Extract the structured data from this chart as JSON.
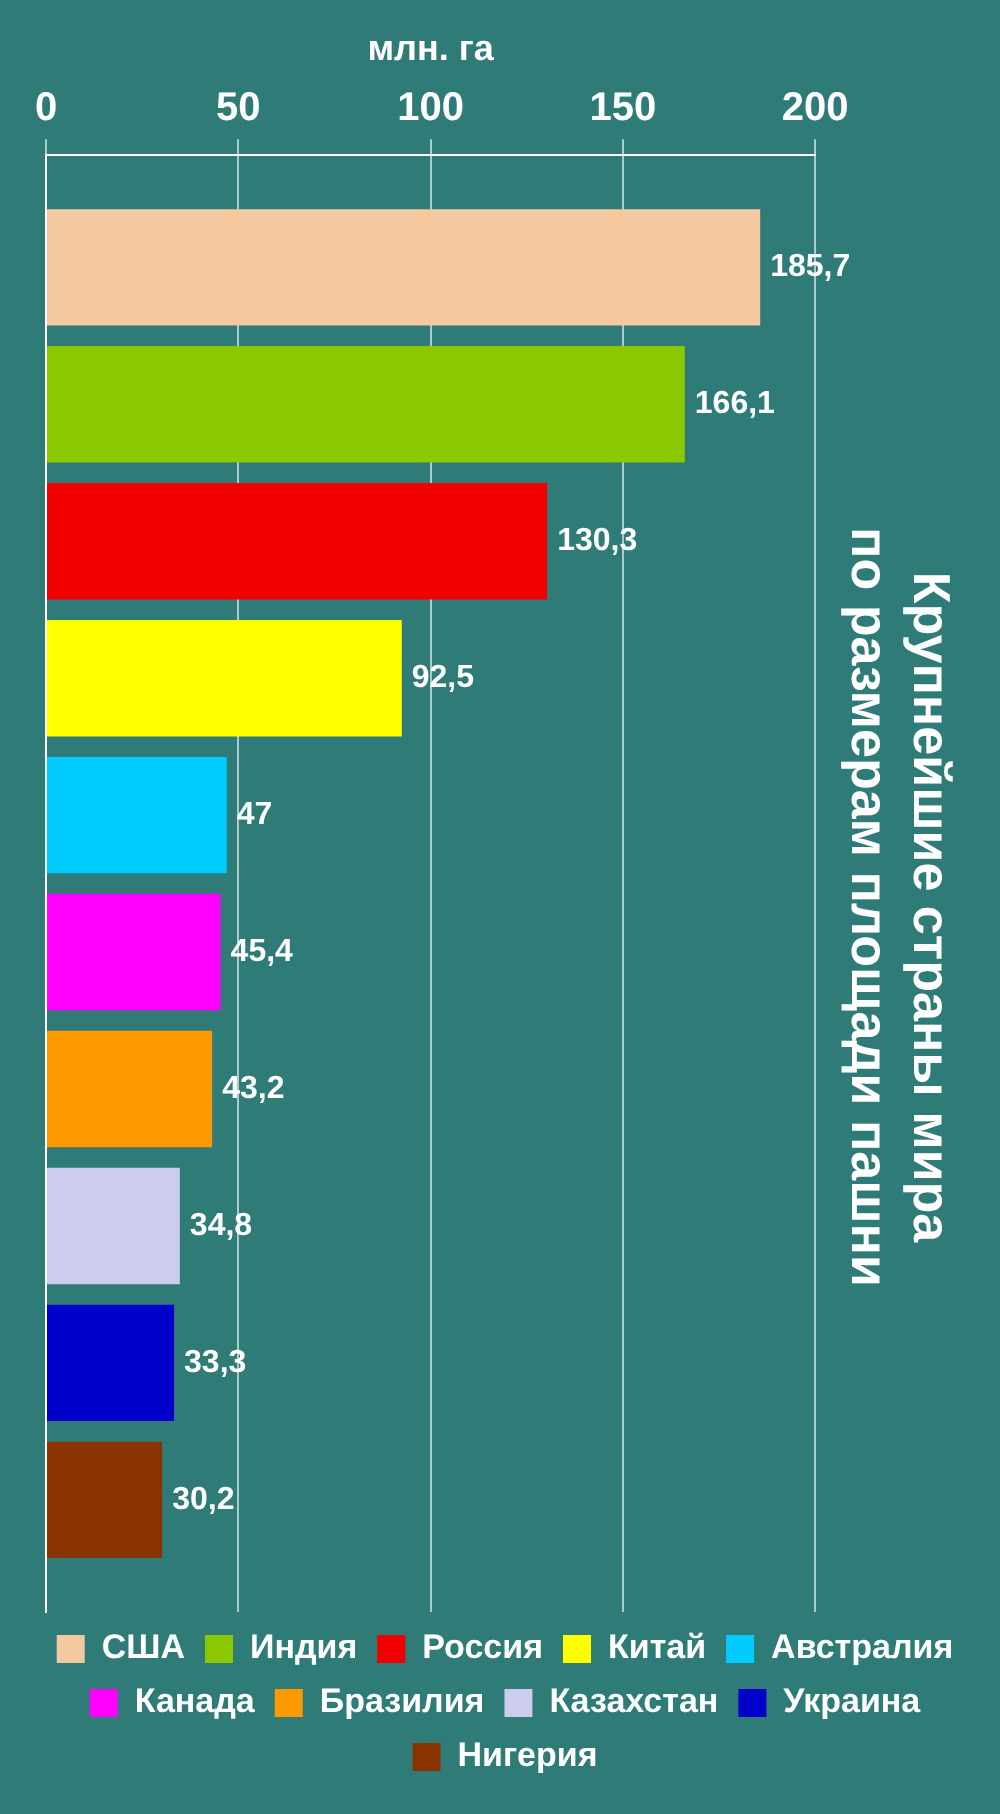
{
  "chart_data": {
    "type": "bar",
    "orientation": "horizontal",
    "title": "Крупнейшие страны мира по размерам площади пашни",
    "xlabel": "млн. га",
    "categories": [
      null
    ],
    "series": [
      {
        "name": "США",
        "color": "#f5c9a0",
        "values": [
          185.7
        ],
        "value_labels": [
          "185,7"
        ]
      },
      {
        "name": "Индия",
        "color": "#8cc800",
        "values": [
          166.1
        ],
        "value_labels": [
          "166,1"
        ]
      },
      {
        "name": "Россия",
        "color": "#f00000",
        "values": [
          130.3
        ],
        "value_labels": [
          "130,3"
        ]
      },
      {
        "name": "Китай",
        "color": "#ffff00",
        "values": [
          92.5
        ],
        "value_labels": [
          "92,5"
        ]
      },
      {
        "name": "Австралия",
        "color": "#00ccff",
        "values": [
          47
        ],
        "value_labels": [
          "47"
        ]
      },
      {
        "name": "Канада",
        "color": "#ff00ff",
        "values": [
          45.4
        ],
        "value_labels": [
          "45,4"
        ]
      },
      {
        "name": "Бразилия",
        "color": "#ff9900",
        "values": [
          43.2
        ],
        "value_labels": [
          "43,2"
        ]
      },
      {
        "name": "Казахстан",
        "color": "#ccccee",
        "values": [
          34.8
        ],
        "value_labels": [
          "34,8"
        ]
      },
      {
        "name": "Украина",
        "color": "#0000cc",
        "values": [
          33.3
        ],
        "value_labels": [
          "33,3"
        ]
      },
      {
        "name": "Нигерия",
        "color": "#883300",
        "values": [
          30.2
        ],
        "value_labels": [
          "30,2"
        ]
      }
    ],
    "xlim": [
      0,
      200
    ],
    "xticks": [
      0,
      50,
      100,
      150,
      200
    ],
    "grid": "x",
    "legend": "bottom",
    "tick_labels": "x"
  }
}
